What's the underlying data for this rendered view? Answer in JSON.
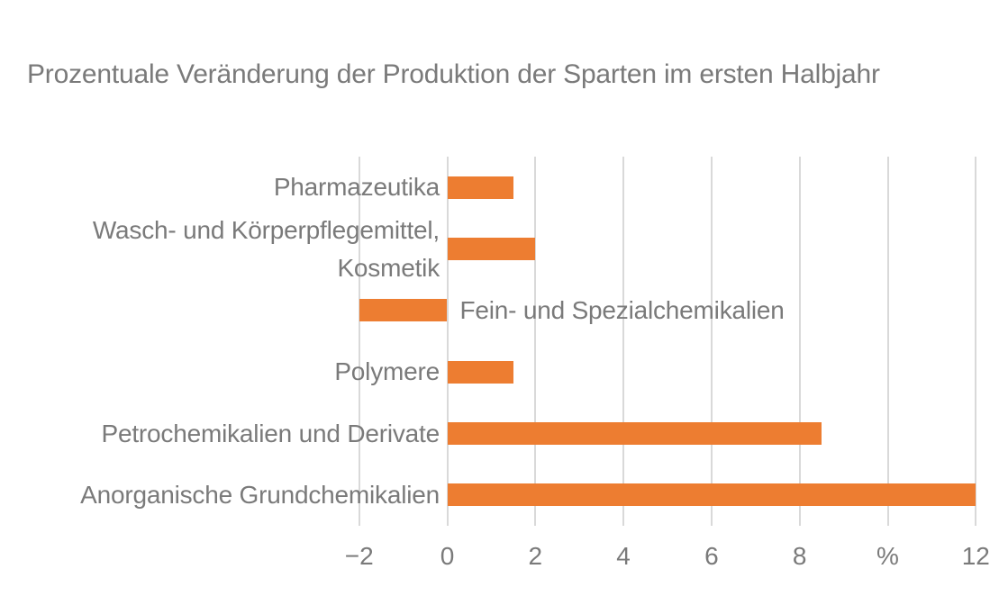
{
  "chart_data": {
    "type": "bar",
    "orientation": "horizontal",
    "title": "Prozentuale Veränderung der Produktion der Sparten im ersten Halbjahr",
    "categories": [
      "Pharmazeutika",
      "Wasch- und Körperpflegemittel,\nKosmetik",
      "Fein- und Spezialchemikalien",
      "Polymere",
      "Petrochemikalien und Derivate",
      "Anorganische Grundchemikalien"
    ],
    "values": [
      1.5,
      2,
      -2,
      1.5,
      8.5,
      12
    ],
    "category_label_side": [
      "left",
      "left",
      "right",
      "left",
      "left",
      "left"
    ],
    "x_ticks": [
      {
        "value": -2,
        "label": "−2"
      },
      {
        "value": 0,
        "label": "0"
      },
      {
        "value": 2,
        "label": "2"
      },
      {
        "value": 4,
        "label": "4"
      },
      {
        "value": 6,
        "label": "6"
      },
      {
        "value": 8,
        "label": "8"
      },
      {
        "value": 10,
        "label": "%"
      },
      {
        "value": 12,
        "label": "12"
      }
    ],
    "xlim": [
      -2,
      12
    ],
    "grid": true,
    "legend": false,
    "value_labels": false,
    "colors": {
      "bar": "#ED7D31",
      "grid": "#D9D9D9",
      "text": "#7A7A7A"
    }
  }
}
